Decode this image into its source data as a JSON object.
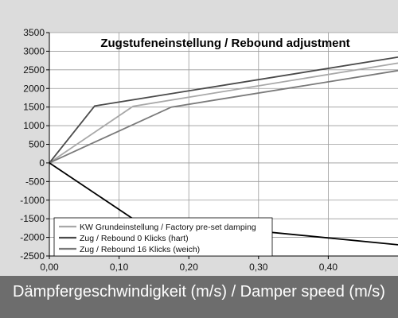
{
  "chart_data": {
    "type": "line",
    "title": "Zugstufeneinstellung / Rebound adjustment",
    "xlabel": "Dämpfergeschwindigkeit (m/s) / Damper speed (m/s)",
    "ylabel": "",
    "xlim": [
      0,
      0.5
    ],
    "ylim": [
      -2500,
      3500
    ],
    "x_ticks": [
      "0,00",
      "0,10",
      "0,20",
      "0,30",
      "0,40"
    ],
    "x_tick_values": [
      0,
      0.1,
      0.2,
      0.3,
      0.4
    ],
    "y_ticks": [
      "3500",
      "3000",
      "2500",
      "2000",
      "1500",
      "1000",
      "500",
      "0",
      "-500",
      "-1000",
      "-1500",
      "-2000",
      "-2500"
    ],
    "y_tick_values": [
      3500,
      3000,
      2500,
      2000,
      1500,
      1000,
      500,
      0,
      -500,
      -1000,
      -1500,
      -2000,
      -2500
    ],
    "grid": true,
    "legend_position": "bottom-center",
    "series": [
      {
        "name": "KW Grundeinstellung / Factory pre-set damping",
        "color": "#a8a8a8",
        "x": [
          0,
          0.12,
          0.5
        ],
        "y": [
          0,
          1520,
          2680
        ]
      },
      {
        "name": "Zug / Rebound 0 Klicks (hart)",
        "color": "#4a4a4a",
        "x": [
          0,
          0.065,
          0.5
        ],
        "y": [
          0,
          1530,
          2840
        ]
      },
      {
        "name": "Zug / Rebound 16 Klicks (weich)",
        "color": "#7a7a7a",
        "x": [
          0,
          0.175,
          0.5
        ],
        "y": [
          0,
          1500,
          2480
        ]
      },
      {
        "name": "",
        "color": "#000000",
        "x": [
          0,
          0.12,
          0.5
        ],
        "y": [
          0,
          -1500,
          -2200
        ]
      }
    ]
  }
}
